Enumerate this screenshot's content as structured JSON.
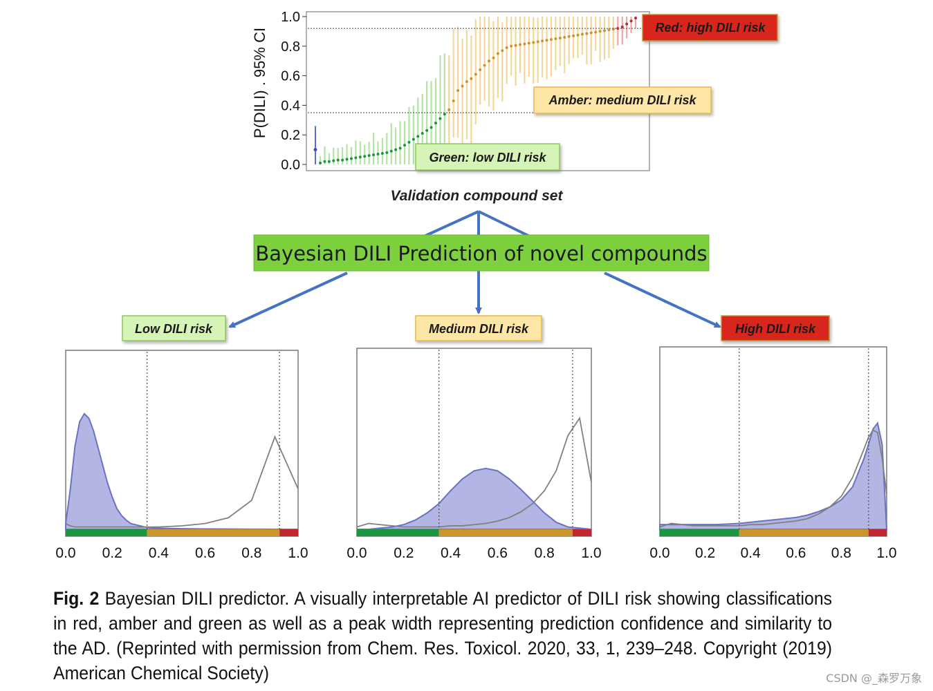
{
  "top_chart": {
    "ylabel": "P(DILI) . 95% CI",
    "xlabel": "Validation compound set",
    "yticks": [
      "0.0",
      "0.2",
      "0.4",
      "0.6",
      "0.8",
      "1.0"
    ],
    "thresholds": [
      0.35,
      0.92
    ],
    "labels": {
      "red": "Red: high DILI risk",
      "amber": "Amber: medium DILI risk",
      "green": "Green: low DILI risk"
    }
  },
  "banner": "Bayesian DILI Prediction of novel compounds",
  "panels": [
    {
      "label": "Low DILI risk"
    },
    {
      "label": "Medium DILI risk"
    },
    {
      "label": "High DILI risk"
    }
  ],
  "xticks": [
    "0.0",
    "0.2",
    "0.4",
    "0.6",
    "0.8",
    "1.0"
  ],
  "colors": {
    "green": "#1a9641",
    "amber": "#c8962a",
    "red": "#c0262d",
    "blue_fill": "#b3b5e3",
    "blue_line": "#6a72c4",
    "gray_line": "#808080",
    "arrow": "#4472c4",
    "banner_bg": "#7dd13f"
  },
  "caption": {
    "fig_label": "Fig. 2",
    "text": "Bayesian DILI predictor. A visually interpretable AI predictor of DILI risk showing classifications in red, amber and green as well as a peak width representing prediction confidence and similarity to the AD. (Reprinted with permission from Chem. Res. Toxicol. 2020, 33, 1, 239–248. Copyright (2019) American Chemical Society)"
  },
  "watermark": "CSDN @_森罗万象",
  "chart_data": [
    {
      "type": "scatter",
      "title": "",
      "xlabel": "Validation compound set",
      "ylabel": "P(DILI) . 95% CI",
      "ylim": [
        0,
        1
      ],
      "description_series": "Sorted predicted P(DILI) with 95% CI error bars, colored green (<0.35), amber (0.35-0.92), red (>0.92)",
      "values": [
        0.01,
        0.02,
        0.02,
        0.025,
        0.03,
        0.03,
        0.035,
        0.04,
        0.045,
        0.05,
        0.055,
        0.06,
        0.065,
        0.07,
        0.075,
        0.08,
        0.09,
        0.1,
        0.11,
        0.13,
        0.15,
        0.17,
        0.19,
        0.21,
        0.23,
        0.25,
        0.28,
        0.31,
        0.34,
        0.37,
        0.43,
        0.5,
        0.53,
        0.56,
        0.58,
        0.61,
        0.64,
        0.67,
        0.7,
        0.72,
        0.75,
        0.77,
        0.79,
        0.8,
        0.805,
        0.81,
        0.815,
        0.82,
        0.825,
        0.83,
        0.835,
        0.84,
        0.845,
        0.85,
        0.855,
        0.86,
        0.865,
        0.87,
        0.875,
        0.88,
        0.885,
        0.89,
        0.895,
        0.9,
        0.905,
        0.91,
        0.915,
        0.92,
        0.93,
        0.95,
        0.97,
        0.99
      ],
      "outlier": {
        "value": 0.1,
        "ci": [
          0.0,
          0.26
        ]
      },
      "thresholds": [
        0.35,
        0.92
      ]
    },
    {
      "type": "area",
      "title": "Low DILI risk",
      "xlim": [
        0,
        1
      ],
      "x": [
        0.0,
        0.02,
        0.04,
        0.06,
        0.08,
        0.1,
        0.12,
        0.14,
        0.16,
        0.18,
        0.2,
        0.22,
        0.24,
        0.26,
        0.28,
        0.3,
        0.32,
        0.34,
        0.36,
        0.4,
        0.5,
        0.6,
        0.7,
        0.8,
        0.9,
        1.0
      ],
      "density": [
        0.05,
        0.35,
        0.72,
        0.93,
        1.0,
        0.96,
        0.85,
        0.7,
        0.55,
        0.4,
        0.28,
        0.18,
        0.12,
        0.08,
        0.05,
        0.04,
        0.03,
        0.02,
        0.015,
        0.01,
        0.005,
        0.003,
        0.002,
        0.001,
        0.0,
        0.0
      ],
      "reference_curve": [
        0.05,
        0.03,
        0.02,
        0.02,
        0.02,
        0.02,
        0.02,
        0.02,
        0.02,
        0.02,
        0.02,
        0.02,
        0.02,
        0.02,
        0.02,
        0.02,
        0.02,
        0.02,
        0.02,
        0.02,
        0.03,
        0.05,
        0.1,
        0.25,
        0.8,
        0.35
      ],
      "thresholds": [
        0.35,
        0.92
      ]
    },
    {
      "type": "area",
      "title": "Medium DILI risk",
      "xlim": [
        0,
        1
      ],
      "x": [
        0.0,
        0.05,
        0.1,
        0.15,
        0.2,
        0.25,
        0.3,
        0.35,
        0.4,
        0.45,
        0.5,
        0.55,
        0.6,
        0.65,
        0.7,
        0.75,
        0.8,
        0.85,
        0.9,
        0.95,
        1.0
      ],
      "density": [
        0.0,
        0.0,
        0.01,
        0.02,
        0.04,
        0.08,
        0.14,
        0.22,
        0.33,
        0.43,
        0.5,
        0.52,
        0.5,
        0.43,
        0.34,
        0.24,
        0.14,
        0.06,
        0.02,
        0.01,
        0.0
      ],
      "reference_curve": [
        0.02,
        0.05,
        0.04,
        0.03,
        0.02,
        0.02,
        0.02,
        0.02,
        0.03,
        0.03,
        0.04,
        0.05,
        0.07,
        0.1,
        0.15,
        0.22,
        0.33,
        0.5,
        0.8,
        0.95,
        0.4
      ],
      "thresholds": [
        0.35,
        0.92
      ]
    },
    {
      "type": "area",
      "title": "High DILI risk",
      "xlim": [
        0,
        1
      ],
      "x": [
        0.0,
        0.05,
        0.1,
        0.15,
        0.2,
        0.25,
        0.3,
        0.35,
        0.4,
        0.45,
        0.5,
        0.55,
        0.6,
        0.65,
        0.7,
        0.75,
        0.8,
        0.85,
        0.9,
        0.92,
        0.94,
        0.96,
        0.98,
        1.0
      ],
      "density": [
        0.04,
        0.04,
        0.04,
        0.04,
        0.04,
        0.04,
        0.045,
        0.05,
        0.06,
        0.07,
        0.08,
        0.09,
        0.1,
        0.12,
        0.15,
        0.19,
        0.25,
        0.36,
        0.6,
        0.72,
        0.85,
        0.9,
        0.72,
        0.0
      ],
      "reference_curve": [
        0.02,
        0.05,
        0.04,
        0.03,
        0.03,
        0.03,
        0.03,
        0.03,
        0.04,
        0.04,
        0.05,
        0.06,
        0.07,
        0.09,
        0.13,
        0.19,
        0.28,
        0.44,
        0.68,
        0.78,
        0.84,
        0.82,
        0.6,
        0.3
      ],
      "thresholds": [
        0.35,
        0.92
      ]
    }
  ]
}
